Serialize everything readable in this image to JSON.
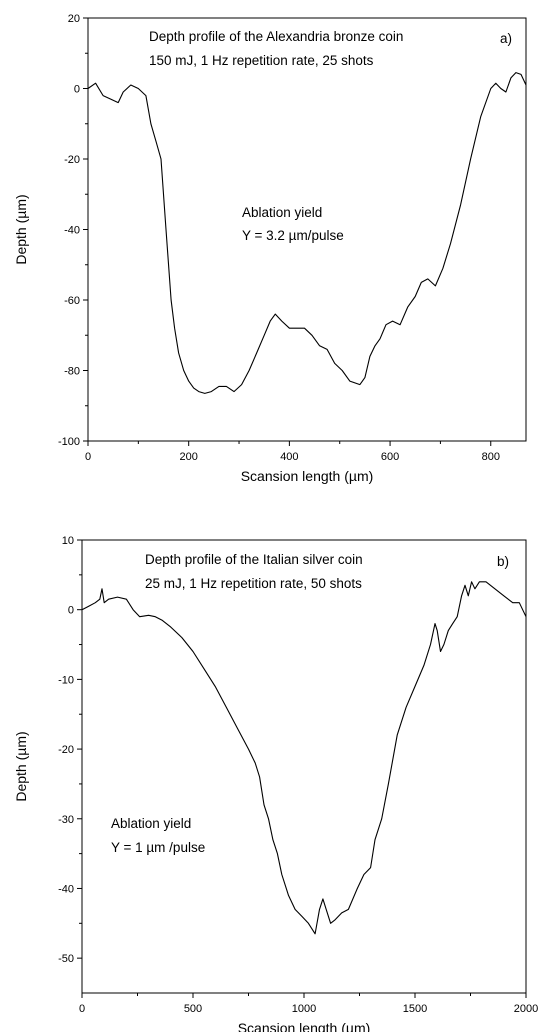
{
  "chart_data": [
    {
      "type": "line",
      "panel_label": "a)",
      "annotations": [
        "Depth profile of the Alexandria bronze coin",
        "150 mJ, 1 Hz repetition rate, 25 shots",
        "Ablation yield",
        "Y = 3.2 µm/pulse"
      ],
      "xlabel": "Scansion length (µm)",
      "ylabel": "Depth (µm)",
      "xlim": [
        0,
        870
      ],
      "ylim": [
        -100,
        20
      ],
      "xticks": [
        0,
        200,
        400,
        600,
        800
      ],
      "yticks": [
        20,
        0,
        -20,
        -40,
        -60,
        -80,
        -100
      ],
      "grid": false,
      "series": [
        {
          "x": [
            0,
            15,
            30,
            45,
            60,
            70,
            85,
            100,
            115,
            125,
            135,
            145,
            155,
            165,
            172,
            180,
            190,
            200,
            210,
            220,
            232,
            245,
            260,
            275,
            290,
            305,
            320,
            335,
            350,
            362,
            372,
            385,
            400,
            415,
            430,
            445,
            460,
            475,
            490,
            505,
            520,
            540,
            550,
            560,
            570,
            580,
            592,
            605,
            620,
            635,
            650,
            662,
            675,
            690,
            705,
            720,
            740,
            760,
            780,
            800,
            810,
            820,
            830,
            840,
            850,
            860,
            870
          ],
          "y": [
            0,
            1.5,
            -2,
            -3,
            -4,
            -1,
            1,
            0,
            -2,
            -10,
            -15,
            -20,
            -40,
            -60,
            -68,
            -75,
            -80,
            -83,
            -85,
            -86,
            -86.5,
            -86,
            -84.5,
            -84.5,
            -86,
            -84,
            -80,
            -75,
            -70,
            -66,
            -64,
            -66,
            -68,
            -68,
            -68,
            -70,
            -73,
            -74,
            -78,
            -80,
            -83,
            -84,
            -82,
            -76,
            -73,
            -71,
            -67,
            -66,
            -67,
            -62,
            -59,
            -55,
            -54,
            -56,
            -51,
            -44,
            -33,
            -20,
            -8,
            0,
            1.5,
            0,
            -1,
            3,
            4.5,
            4,
            1
          ]
        }
      ]
    },
    {
      "type": "line",
      "panel_label": "b)",
      "annotations": [
        "Depth profile of the Italian silver coin",
        "25 mJ, 1 Hz repetition rate, 50 shots",
        "Ablation yield",
        "Y = 1 µm /pulse"
      ],
      "xlabel": "Scansion length (µm)",
      "ylabel": "Depth (µm)",
      "xlim": [
        0,
        2000
      ],
      "ylim": [
        -55,
        10
      ],
      "xticks": [
        0,
        500,
        1000,
        1500,
        2000
      ],
      "yticks": [
        10,
        0,
        -10,
        -20,
        -30,
        -40,
        -50
      ],
      "grid": false,
      "series": [
        {
          "x": [
            0,
            30,
            60,
            80,
            90,
            100,
            120,
            160,
            200,
            230,
            260,
            300,
            330,
            360,
            400,
            450,
            500,
            550,
            600,
            650,
            700,
            750,
            780,
            800,
            820,
            840,
            860,
            880,
            900,
            930,
            960,
            990,
            1020,
            1050,
            1070,
            1085,
            1100,
            1120,
            1140,
            1170,
            1200,
            1240,
            1270,
            1300,
            1320,
            1350,
            1380,
            1420,
            1460,
            1500,
            1540,
            1570,
            1590,
            1600,
            1615,
            1630,
            1650,
            1670,
            1690,
            1710,
            1725,
            1740,
            1755,
            1770,
            1790,
            1820,
            1860,
            1900,
            1940,
            1970,
            2000
          ],
          "y": [
            0,
            0.5,
            1,
            1.5,
            3,
            1,
            1.5,
            1.8,
            1.5,
            0,
            -1,
            -0.8,
            -1,
            -1.5,
            -2.5,
            -4,
            -6,
            -8.5,
            -11,
            -14,
            -17,
            -20,
            -22,
            -24,
            -28,
            -30,
            -33,
            -35,
            -38,
            -41,
            -43,
            -44,
            -45,
            -46.5,
            -43,
            -41.5,
            -43,
            -45,
            -44.5,
            -43.5,
            -43,
            -40,
            -38,
            -37,
            -33,
            -30,
            -25,
            -18,
            -14,
            -11,
            -8,
            -5,
            -2,
            -3,
            -6,
            -5,
            -3,
            -2,
            -1,
            2,
            3.5,
            2,
            4,
            3,
            4,
            4,
            3,
            2,
            1,
            1,
            -1
          ]
        }
      ]
    }
  ]
}
